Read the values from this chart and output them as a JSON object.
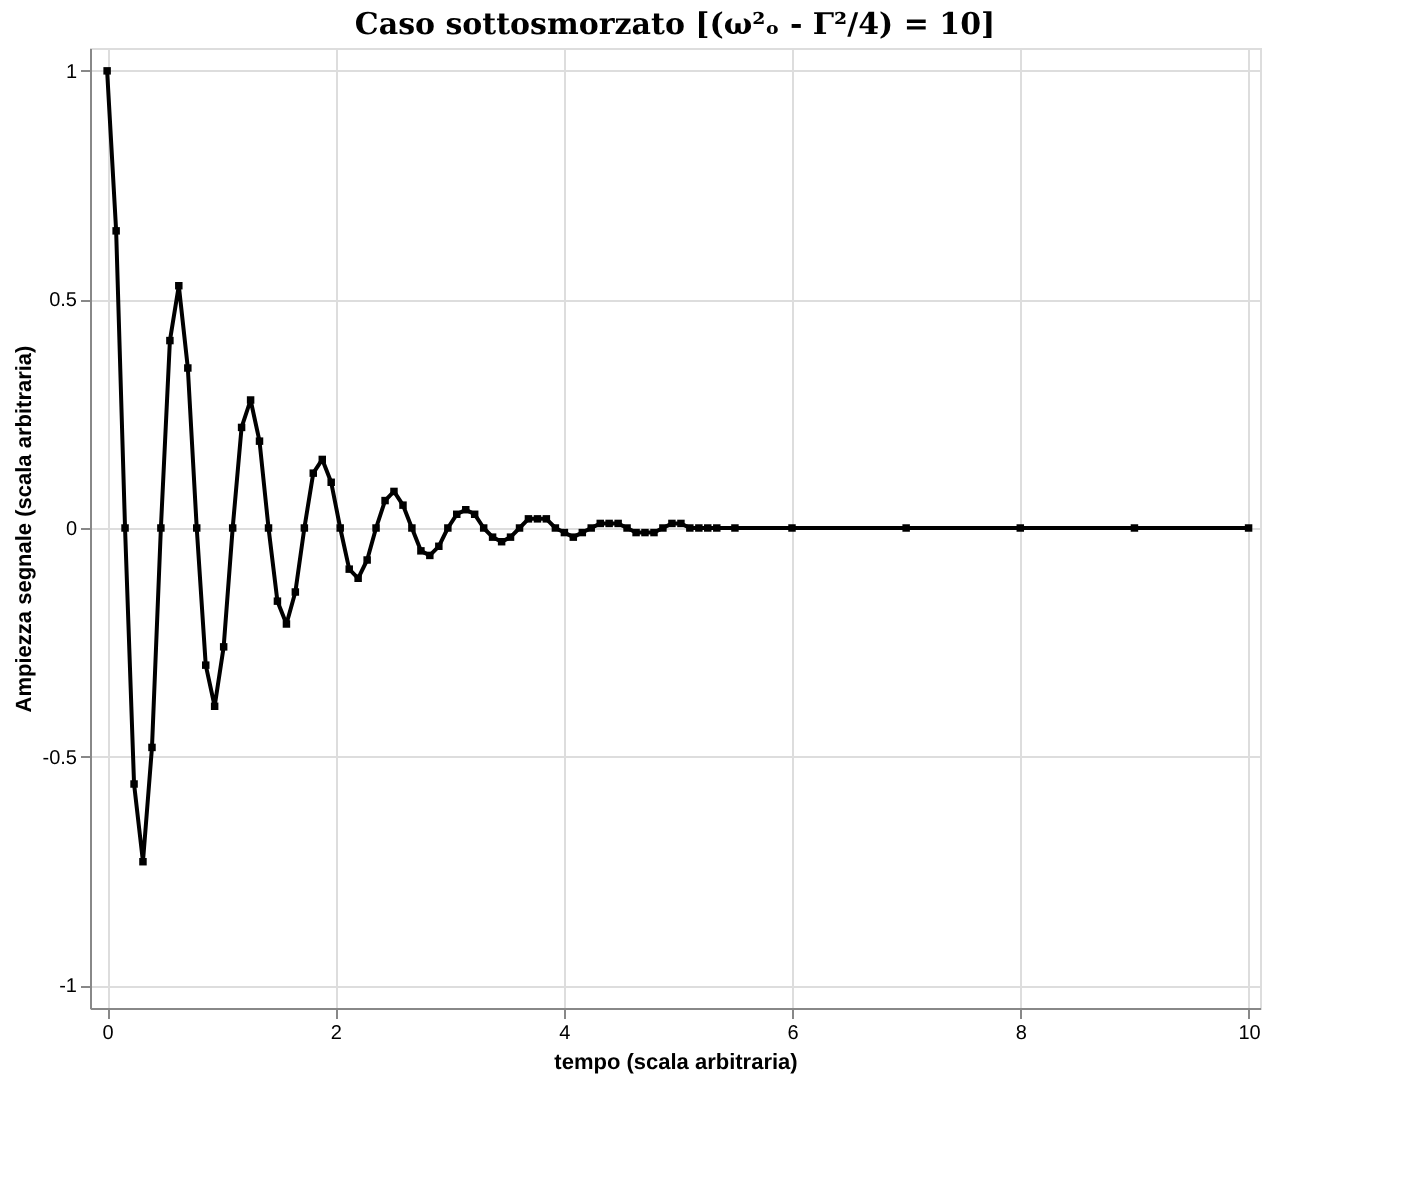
{
  "chart_data": {
    "type": "line",
    "title": "Caso sottosmorzato [(ω²ₒ - Γ²/4) = 10]",
    "xlabel": "tempo (scala arbitraria)",
    "ylabel": "Ampiezza segnale (scala arbitraria)",
    "x": [
      0,
      0.079,
      0.157,
      0.236,
      0.314,
      0.393,
      0.471,
      0.55,
      0.628,
      0.707,
      0.785,
      0.864,
      0.942,
      1.021,
      1.1,
      1.178,
      1.257,
      1.335,
      1.414,
      1.492,
      1.571,
      1.649,
      1.728,
      1.806,
      1.885,
      1.963,
      2.042,
      2.121,
      2.199,
      2.278,
      2.356,
      2.435,
      2.513,
      2.592,
      2.67,
      2.749,
      2.827,
      2.906,
      2.985,
      3.063,
      3.142,
      3.22,
      3.299,
      3.377,
      3.456,
      3.534,
      3.613,
      3.691,
      3.77,
      3.848,
      3.927,
      4.006,
      4.084,
      4.163,
      4.241,
      4.32,
      4.398,
      4.477,
      4.555,
      4.634,
      4.712,
      4.791,
      4.869,
      4.948,
      5.027,
      5.105,
      5.184,
      5.262,
      5.341,
      5.5,
      6,
      7,
      8,
      9,
      10
    ],
    "series": [
      {
        "color": "#000000",
        "values": [
          1,
          0.65,
          0,
          -0.56,
          -0.73,
          -0.48,
          0,
          0.41,
          0.53,
          0.35,
          0,
          -0.3,
          -0.39,
          -0.26,
          0,
          0.22,
          0.28,
          0.19,
          0,
          -0.16,
          -0.21,
          -0.14,
          0,
          0.12,
          0.15,
          0.1,
          0,
          -0.09,
          -0.11,
          -0.07,
          0,
          0.06,
          0.08,
          0.05,
          0,
          -0.05,
          -0.06,
          -0.04,
          0,
          0.03,
          0.04,
          0.03,
          0,
          -0.02,
          -0.03,
          -0.02,
          0,
          0.02,
          0.02,
          0.02,
          0,
          -0.01,
          -0.02,
          -0.01,
          0,
          0.01,
          0.01,
          0.01,
          0,
          -0.01,
          -0.01,
          -0.01,
          0,
          0.01,
          0.01,
          0,
          0,
          0,
          0,
          0,
          0,
          0,
          0,
          0,
          0
        ]
      }
    ],
    "xlim": [
      -0.15,
      10.1
    ],
    "ylim": [
      -1.05,
      1.05
    ],
    "xticks": [
      0,
      2,
      4,
      6,
      8,
      10
    ],
    "yticks": [
      -1,
      -0.5,
      0,
      0.5,
      1
    ],
    "grid": true,
    "marker": "square",
    "line_style": "solid"
  }
}
